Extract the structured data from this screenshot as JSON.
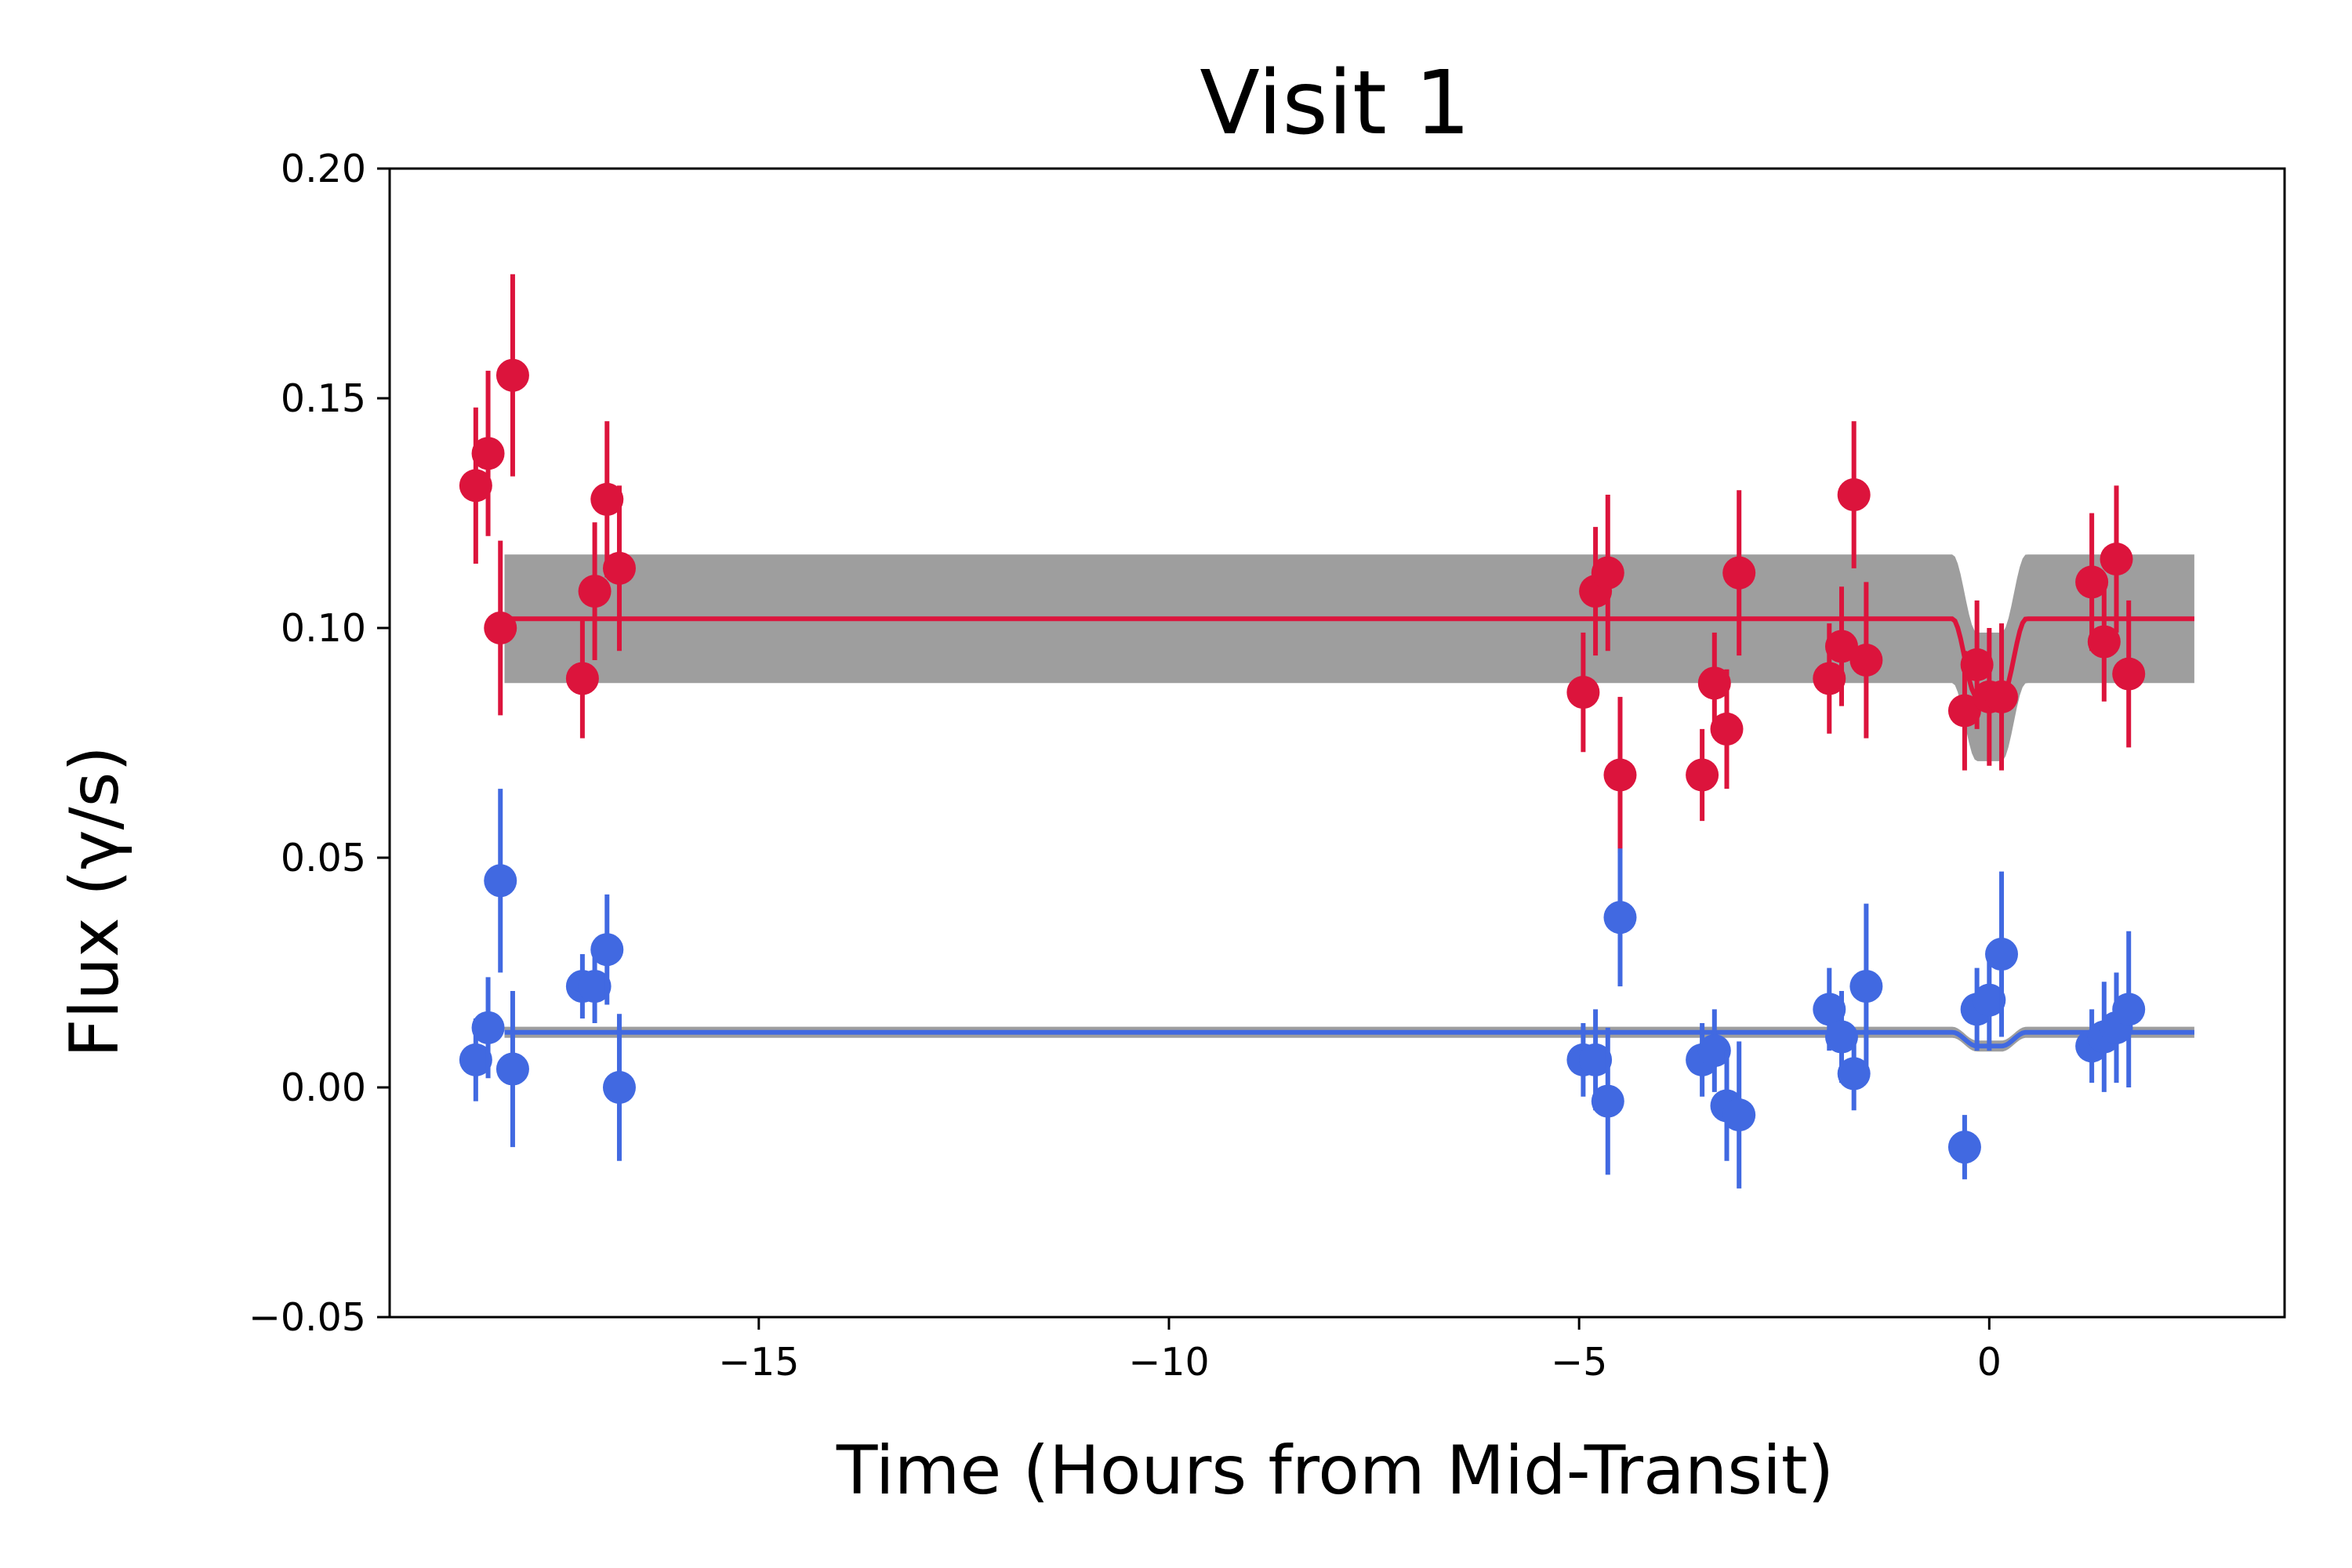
{
  "chart_data": {
    "type": "scatter",
    "title": "Visit 1",
    "xlabel": "Time (Hours from Mid-Transit)",
    "ylabel": "Flux (γ/s)",
    "xlim": [
      -19.5,
      3.6
    ],
    "ylim": [
      -0.05,
      0.2
    ],
    "xticks": [
      -15,
      -10,
      -5,
      0
    ],
    "xtick_labels": [
      "−15",
      "−10",
      "−5",
      "0"
    ],
    "yticks": [
      -0.05,
      0.0,
      0.05,
      0.1,
      0.15,
      0.2
    ],
    "ytick_labels": [
      "−0.05",
      "0.00",
      "0.05",
      "0.10",
      "0.15",
      "0.20"
    ],
    "grid": false,
    "legend": "none",
    "series": [
      {
        "color": "#dc143c",
        "model": {
          "baseline": 0.102,
          "depth": 0.017,
          "band_halfwidth": 0.014,
          "x_start": -18.1,
          "x_end": 2.5
        },
        "points": [
          {
            "x": -18.45,
            "y": 0.131,
            "err": 0.017
          },
          {
            "x": -18.3,
            "y": 0.138,
            "err": 0.018
          },
          {
            "x": -18.15,
            "y": 0.1,
            "err": 0.019
          },
          {
            "x": -18.0,
            "y": 0.155,
            "err": 0.022
          },
          {
            "x": -17.15,
            "y": 0.089,
            "err": 0.013
          },
          {
            "x": -17.0,
            "y": 0.108,
            "err": 0.015
          },
          {
            "x": -16.85,
            "y": 0.128,
            "err": 0.017
          },
          {
            "x": -16.7,
            "y": 0.113,
            "err": 0.018
          },
          {
            "x": -4.95,
            "y": 0.086,
            "err": 0.013
          },
          {
            "x": -4.8,
            "y": 0.108,
            "err": 0.014
          },
          {
            "x": -4.65,
            "y": 0.112,
            "err": 0.017
          },
          {
            "x": -4.5,
            "y": 0.068,
            "err": 0.017
          },
          {
            "x": -3.5,
            "y": 0.068,
            "err": 0.01
          },
          {
            "x": -3.35,
            "y": 0.088,
            "err": 0.011
          },
          {
            "x": -3.2,
            "y": 0.078,
            "err": 0.013
          },
          {
            "x": -3.05,
            "y": 0.112,
            "err": 0.018
          },
          {
            "x": -1.95,
            "y": 0.089,
            "err": 0.012
          },
          {
            "x": -1.8,
            "y": 0.096,
            "err": 0.013
          },
          {
            "x": -1.65,
            "y": 0.129,
            "err": 0.016
          },
          {
            "x": -1.5,
            "y": 0.093,
            "err": 0.017
          },
          {
            "x": -0.3,
            "y": 0.082,
            "err": 0.013
          },
          {
            "x": -0.15,
            "y": 0.092,
            "err": 0.014
          },
          {
            "x": 0.0,
            "y": 0.085,
            "err": 0.015
          },
          {
            "x": 0.15,
            "y": 0.085,
            "err": 0.016
          },
          {
            "x": 1.25,
            "y": 0.11,
            "err": 0.015
          },
          {
            "x": 1.4,
            "y": 0.097,
            "err": 0.013
          },
          {
            "x": 1.55,
            "y": 0.115,
            "err": 0.016
          },
          {
            "x": 1.7,
            "y": 0.09,
            "err": 0.016
          }
        ]
      },
      {
        "color": "#4169e1",
        "model": {
          "baseline": 0.012,
          "depth": 0.003,
          "band_halfwidth": 0.0012,
          "x_start": -18.1,
          "x_end": 2.5
        },
        "points": [
          {
            "x": -18.45,
            "y": 0.006,
            "err": 0.009
          },
          {
            "x": -18.3,
            "y": 0.013,
            "err": 0.011
          },
          {
            "x": -18.15,
            "y": 0.045,
            "err": 0.02
          },
          {
            "x": -18.0,
            "y": 0.004,
            "err": 0.017
          },
          {
            "x": -17.15,
            "y": 0.022,
            "err": 0.007
          },
          {
            "x": -17.0,
            "y": 0.022,
            "err": 0.008
          },
          {
            "x": -16.85,
            "y": 0.03,
            "err": 0.012
          },
          {
            "x": -16.7,
            "y": 0.0,
            "err": 0.016
          },
          {
            "x": -4.95,
            "y": 0.006,
            "err": 0.008
          },
          {
            "x": -4.8,
            "y": 0.006,
            "err": 0.011
          },
          {
            "x": -4.65,
            "y": -0.003,
            "err": 0.016
          },
          {
            "x": -4.5,
            "y": 0.037,
            "err": 0.015
          },
          {
            "x": -3.5,
            "y": 0.006,
            "err": 0.008
          },
          {
            "x": -3.35,
            "y": 0.008,
            "err": 0.009
          },
          {
            "x": -3.2,
            "y": -0.004,
            "err": 0.012
          },
          {
            "x": -3.05,
            "y": -0.006,
            "err": 0.016
          },
          {
            "x": -1.95,
            "y": 0.017,
            "err": 0.009
          },
          {
            "x": -1.8,
            "y": 0.011,
            "err": 0.01
          },
          {
            "x": -1.65,
            "y": 0.003,
            "err": 0.008
          },
          {
            "x": -1.5,
            "y": 0.022,
            "err": 0.018
          },
          {
            "x": -0.3,
            "y": -0.013,
            "err": 0.007
          },
          {
            "x": -0.15,
            "y": 0.017,
            "err": 0.009
          },
          {
            "x": 0.0,
            "y": 0.019,
            "err": 0.011
          },
          {
            "x": 0.15,
            "y": 0.029,
            "err": 0.018
          },
          {
            "x": 1.25,
            "y": 0.009,
            "err": 0.008
          },
          {
            "x": 1.4,
            "y": 0.011,
            "err": 0.012
          },
          {
            "x": 1.55,
            "y": 0.013,
            "err": 0.012
          },
          {
            "x": 1.7,
            "y": 0.017,
            "err": 0.017
          }
        ]
      }
    ]
  }
}
